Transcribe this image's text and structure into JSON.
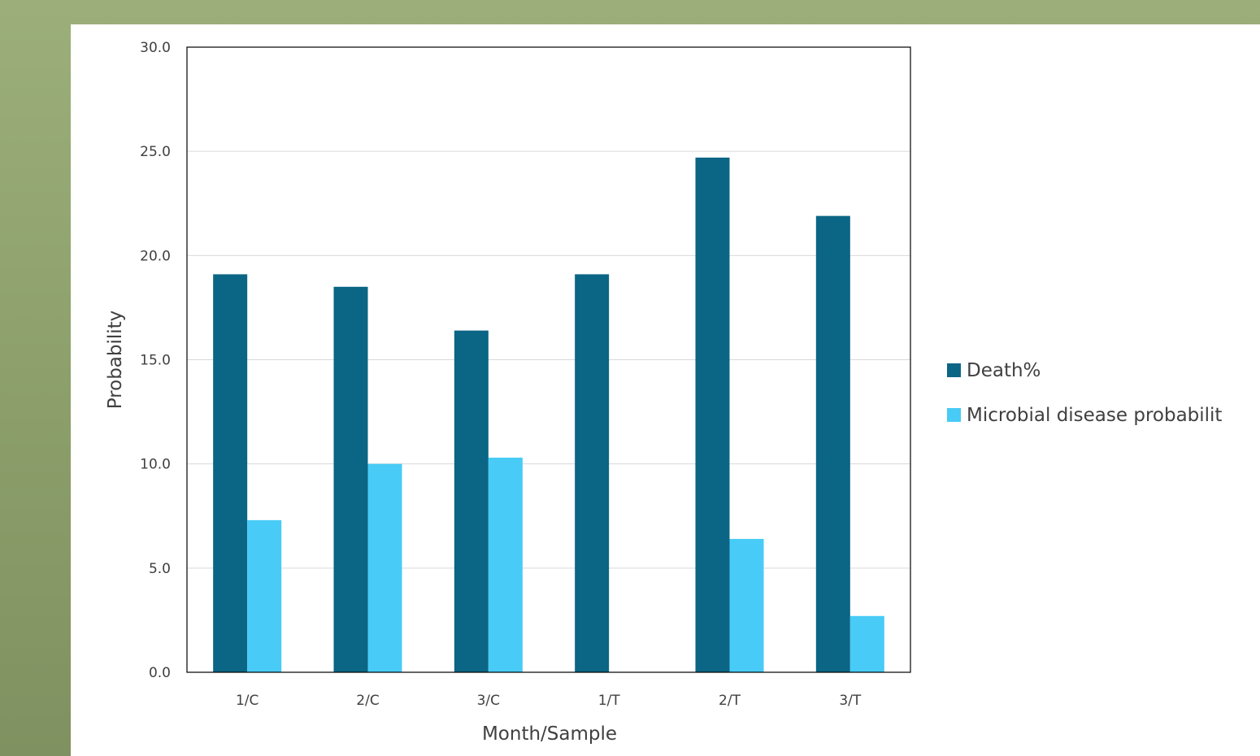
{
  "chart_data": {
    "type": "bar",
    "categories": [
      "1/C",
      "2/C",
      "3/C",
      "1/T",
      "2/T",
      "3/T"
    ],
    "series": [
      {
        "name": "Death%",
        "color": "#0b6585",
        "values": [
          19.1,
          18.5,
          16.4,
          19.1,
          24.7,
          21.9
        ]
      },
      {
        "name": "Microbial disease probabilit",
        "color": "#48cbf6",
        "values": [
          7.3,
          10.0,
          10.3,
          0.0,
          6.4,
          2.7
        ]
      }
    ],
    "xlabel": "Month/Sample",
    "ylabel": "Probability",
    "ylim": [
      0,
      30
    ],
    "yticks": [
      "0.0",
      "5.0",
      "10.0",
      "15.0",
      "20.0",
      "25.0",
      "30.0"
    ],
    "grid": true,
    "legend_position": "right"
  }
}
